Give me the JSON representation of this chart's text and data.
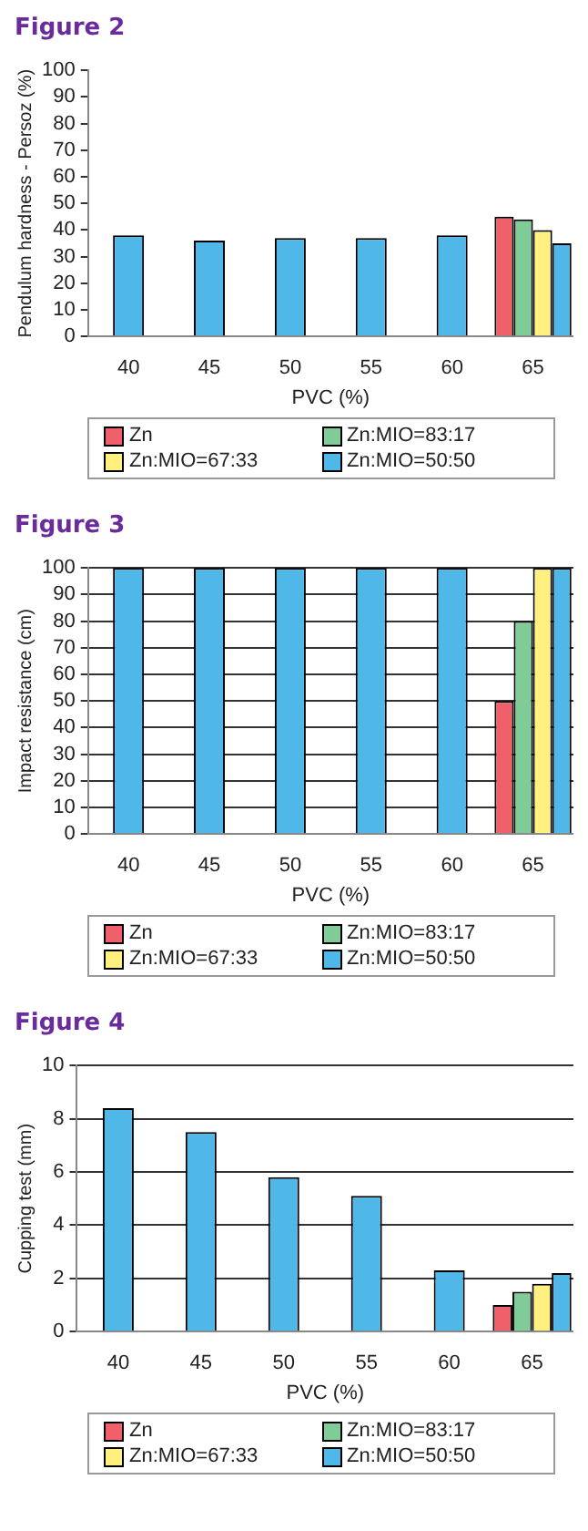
{
  "chart_data": [
    {
      "type": "bar",
      "title": "Figure 2",
      "xlabel": "PVC (%)",
      "ylabel": "Pendulum hardness - Persoz (%)",
      "categories": [
        "40",
        "45",
        "50",
        "55",
        "60",
        "65"
      ],
      "series": [
        {
          "name": "Zn",
          "color": "#f0606a",
          "values": [
            null,
            null,
            null,
            null,
            null,
            45
          ]
        },
        {
          "name": "Zn:MIO=83:17",
          "color": "#80cc98",
          "values": [
            null,
            null,
            null,
            null,
            null,
            44
          ]
        },
        {
          "name": "Zn:MIO=67:33",
          "color": "#fff080",
          "values": [
            null,
            null,
            null,
            null,
            null,
            40
          ]
        },
        {
          "name": "Zn:MIO=50:50",
          "color": "#50b8e8",
          "values": [
            38,
            36,
            37,
            37,
            38,
            35
          ]
        }
      ],
      "ylim": [
        0,
        100
      ],
      "yticks": [
        0,
        10,
        20,
        30,
        40,
        50,
        60,
        70,
        80,
        90,
        100
      ],
      "grid": false,
      "legend": "bottom"
    },
    {
      "type": "bar",
      "title": "Figure 3",
      "xlabel": "PVC (%)",
      "ylabel": "Impact resistance (cm)",
      "categories": [
        "40",
        "45",
        "50",
        "55",
        "60",
        "65"
      ],
      "series": [
        {
          "name": "Zn",
          "color": "#f0606a",
          "values": [
            null,
            null,
            null,
            null,
            null,
            50
          ]
        },
        {
          "name": "Zn:MIO=83:17",
          "color": "#80cc98",
          "values": [
            null,
            null,
            null,
            null,
            null,
            80
          ]
        },
        {
          "name": "Zn:MIO=67:33",
          "color": "#fff080",
          "values": [
            null,
            null,
            null,
            null,
            null,
            100
          ]
        },
        {
          "name": "Zn:MIO=50:50",
          "color": "#50b8e8",
          "values": [
            100,
            100,
            100,
            100,
            100,
            100
          ]
        }
      ],
      "ylim": [
        0,
        100
      ],
      "yticks": [
        0,
        10,
        20,
        30,
        40,
        50,
        60,
        70,
        80,
        90,
        100
      ],
      "grid": "y",
      "legend": "bottom"
    },
    {
      "type": "bar",
      "title": "Figure 4",
      "xlabel": "PVC (%)",
      "ylabel": "Cupping test (mm)",
      "categories": [
        "40",
        "45",
        "50",
        "55",
        "60",
        "65"
      ],
      "series": [
        {
          "name": "Zn",
          "color": "#f0606a",
          "values": [
            null,
            null,
            null,
            null,
            null,
            1.0
          ]
        },
        {
          "name": "Zn:MIO=83:17",
          "color": "#80cc98",
          "values": [
            null,
            null,
            null,
            null,
            null,
            1.5
          ]
        },
        {
          "name": "Zn:MIO=67:33",
          "color": "#fff080",
          "values": [
            null,
            null,
            null,
            null,
            null,
            1.8
          ]
        },
        {
          "name": "Zn:MIO=50:50",
          "color": "#50b8e8",
          "values": [
            8.4,
            7.5,
            5.8,
            5.1,
            2.3,
            2.2
          ]
        }
      ],
      "ylim": [
        0,
        10
      ],
      "yticks": [
        0,
        2,
        4,
        6,
        8,
        10
      ],
      "grid": "y",
      "legend": "bottom"
    }
  ]
}
